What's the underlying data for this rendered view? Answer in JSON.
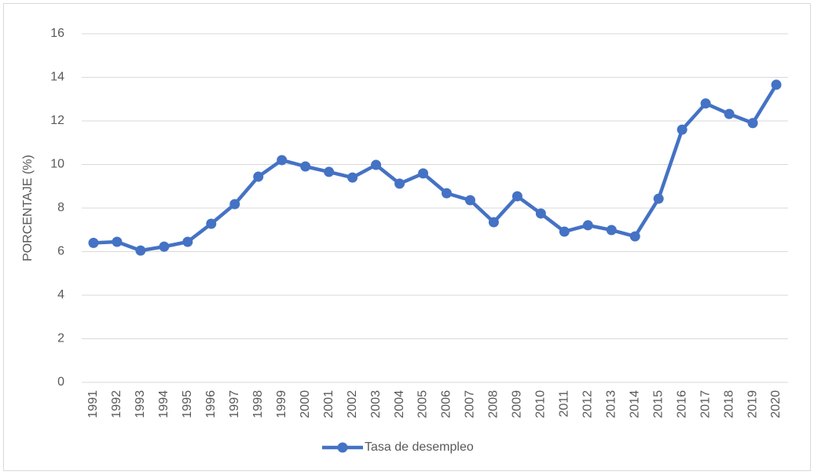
{
  "chart_data": {
    "type": "line",
    "y_label": "PORCENTAJE (%)",
    "categories": [
      "1991",
      "1992",
      "1993",
      "1994",
      "1995",
      "1996",
      "1997",
      "1998",
      "1999",
      "2000",
      "2001",
      "2002",
      "2003",
      "2004",
      "2005",
      "2006",
      "2007",
      "2008",
      "2009",
      "2010",
      "2011",
      "2012",
      "2013",
      "2014",
      "2015",
      "2016",
      "2017",
      "2018",
      "2019",
      "2020"
    ],
    "series": [
      {
        "name": "Tasa de desempleo",
        "color": "#4472c4",
        "values": [
          6.4,
          6.45,
          6.05,
          6.23,
          6.45,
          7.28,
          8.18,
          9.44,
          10.2,
          9.91,
          9.66,
          9.4,
          9.98,
          9.12,
          9.59,
          8.68,
          8.36,
          7.35,
          8.54,
          7.75,
          6.92,
          7.21,
          6.99,
          6.7,
          8.43,
          11.6,
          12.8,
          12.32,
          11.9,
          13.66
        ]
      }
    ],
    "ylim": [
      0,
      16
    ],
    "yticks": [
      0,
      2,
      4,
      6,
      8,
      10,
      12,
      14,
      16
    ],
    "grid": true,
    "legend": "bottom"
  }
}
